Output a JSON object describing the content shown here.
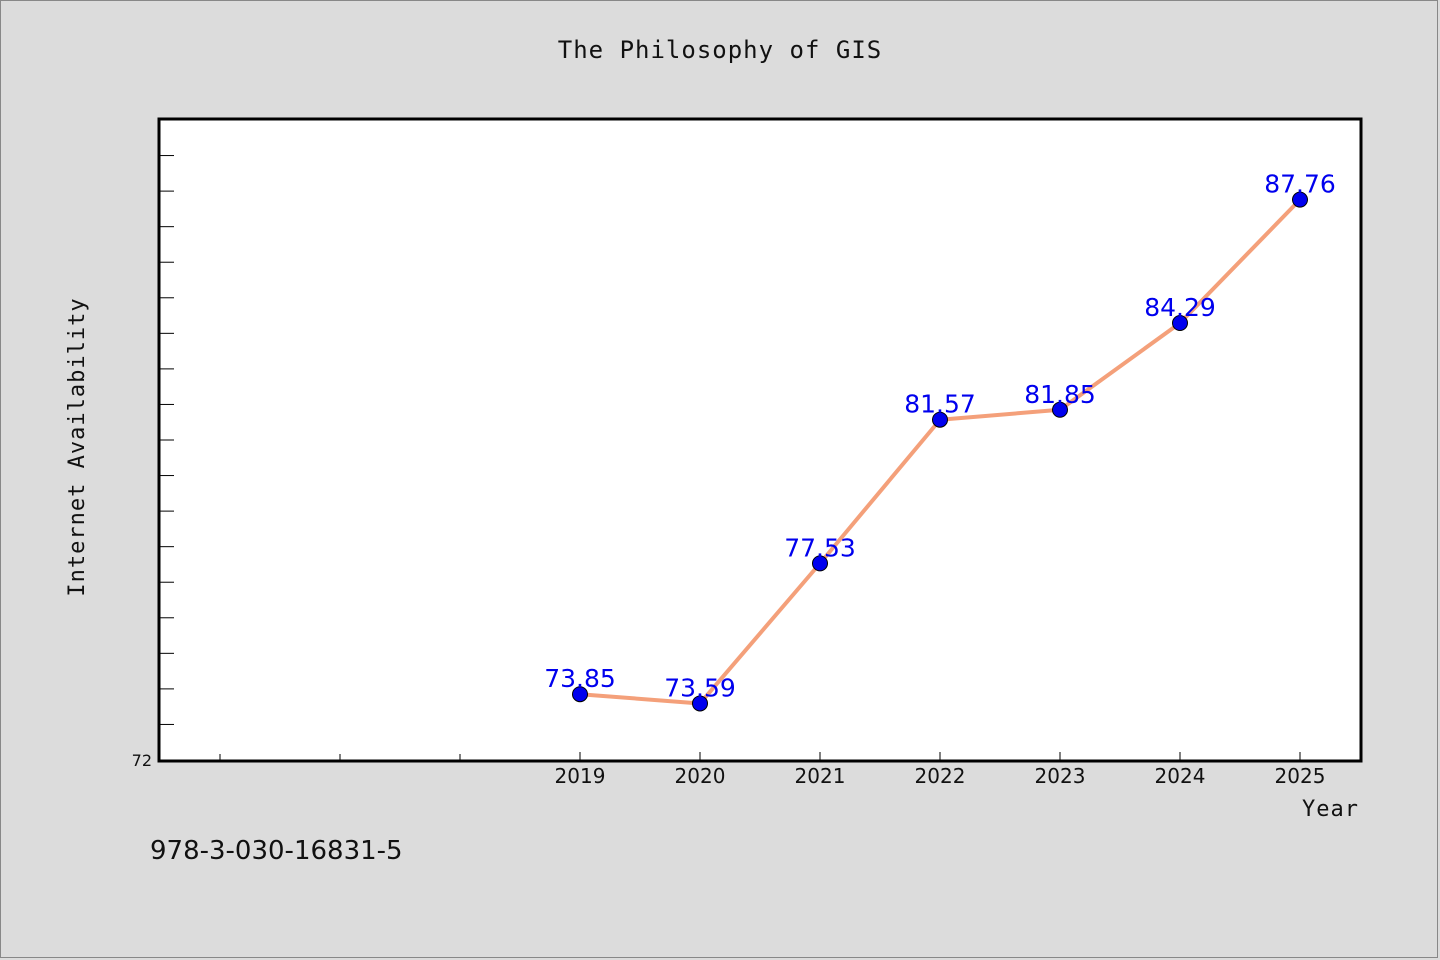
{
  "title": "The Philosophy of GIS",
  "isbn": "978-3-030-16831-5",
  "chart_data": {
    "type": "line",
    "title": "The Philosophy of GIS",
    "xlabel": "Year",
    "ylabel": "Internet Availability",
    "categories": [
      "2019",
      "2020",
      "2021",
      "2022",
      "2023",
      "2024",
      "2025"
    ],
    "series": [
      {
        "values": [
          73.85,
          73.59,
          77.53,
          81.57,
          81.85,
          84.29,
          87.76
        ]
      }
    ],
    "data_labels": [
      "73.85",
      "73.59",
      "77.53",
      "81.57",
      "81.85",
      "84.29",
      "87.76"
    ],
    "y_tick_labels": [
      "72"
    ],
    "ylim": [
      72,
      90
    ],
    "grid": false,
    "legend": "none",
    "colors": {
      "line": "#f4a07a",
      "marker": "#0000ee",
      "label": "#0000ee",
      "background": "#dcdcdc",
      "plot": "#ffffff"
    }
  }
}
